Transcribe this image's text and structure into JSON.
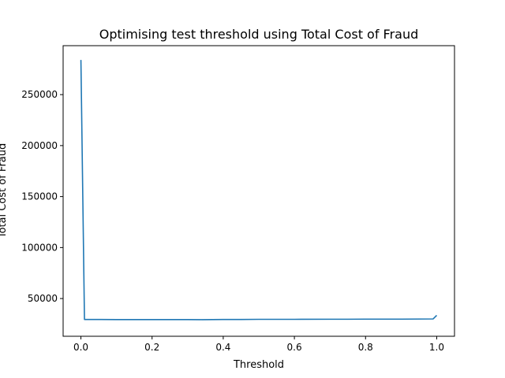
{
  "chart_data": {
    "type": "line",
    "title": "Optimising test threshold using Total Cost of Fraud",
    "xlabel": "Threshold",
    "ylabel": "Total Cost of Fraud",
    "xlim": [
      -0.05,
      1.05
    ],
    "ylim": [
      13000,
      298000
    ],
    "xticks": [
      0.0,
      0.2,
      0.4,
      0.6,
      0.8,
      1.0
    ],
    "xtick_labels": [
      "0.0",
      "0.2",
      "0.4",
      "0.6",
      "0.8",
      "1.0"
    ],
    "yticks": [
      50000,
      100000,
      150000,
      200000,
      250000
    ],
    "ytick_labels": [
      "50000",
      "100000",
      "150000",
      "200000",
      "250000"
    ],
    "grid": false,
    "series": [
      {
        "color": "#1f77b4",
        "x": [
          0.0,
          0.01,
          0.05,
          0.1,
          0.2,
          0.3,
          0.34,
          0.4,
          0.45,
          0.5,
          0.6,
          0.7,
          0.75,
          0.8,
          0.9,
          0.95,
          0.99,
          1.0
        ],
        "y": [
          284000,
          29500,
          29500,
          29400,
          29400,
          29400,
          29300,
          29500,
          29500,
          29600,
          29600,
          29700,
          29700,
          29800,
          29800,
          29900,
          30000,
          33500
        ]
      }
    ]
  }
}
